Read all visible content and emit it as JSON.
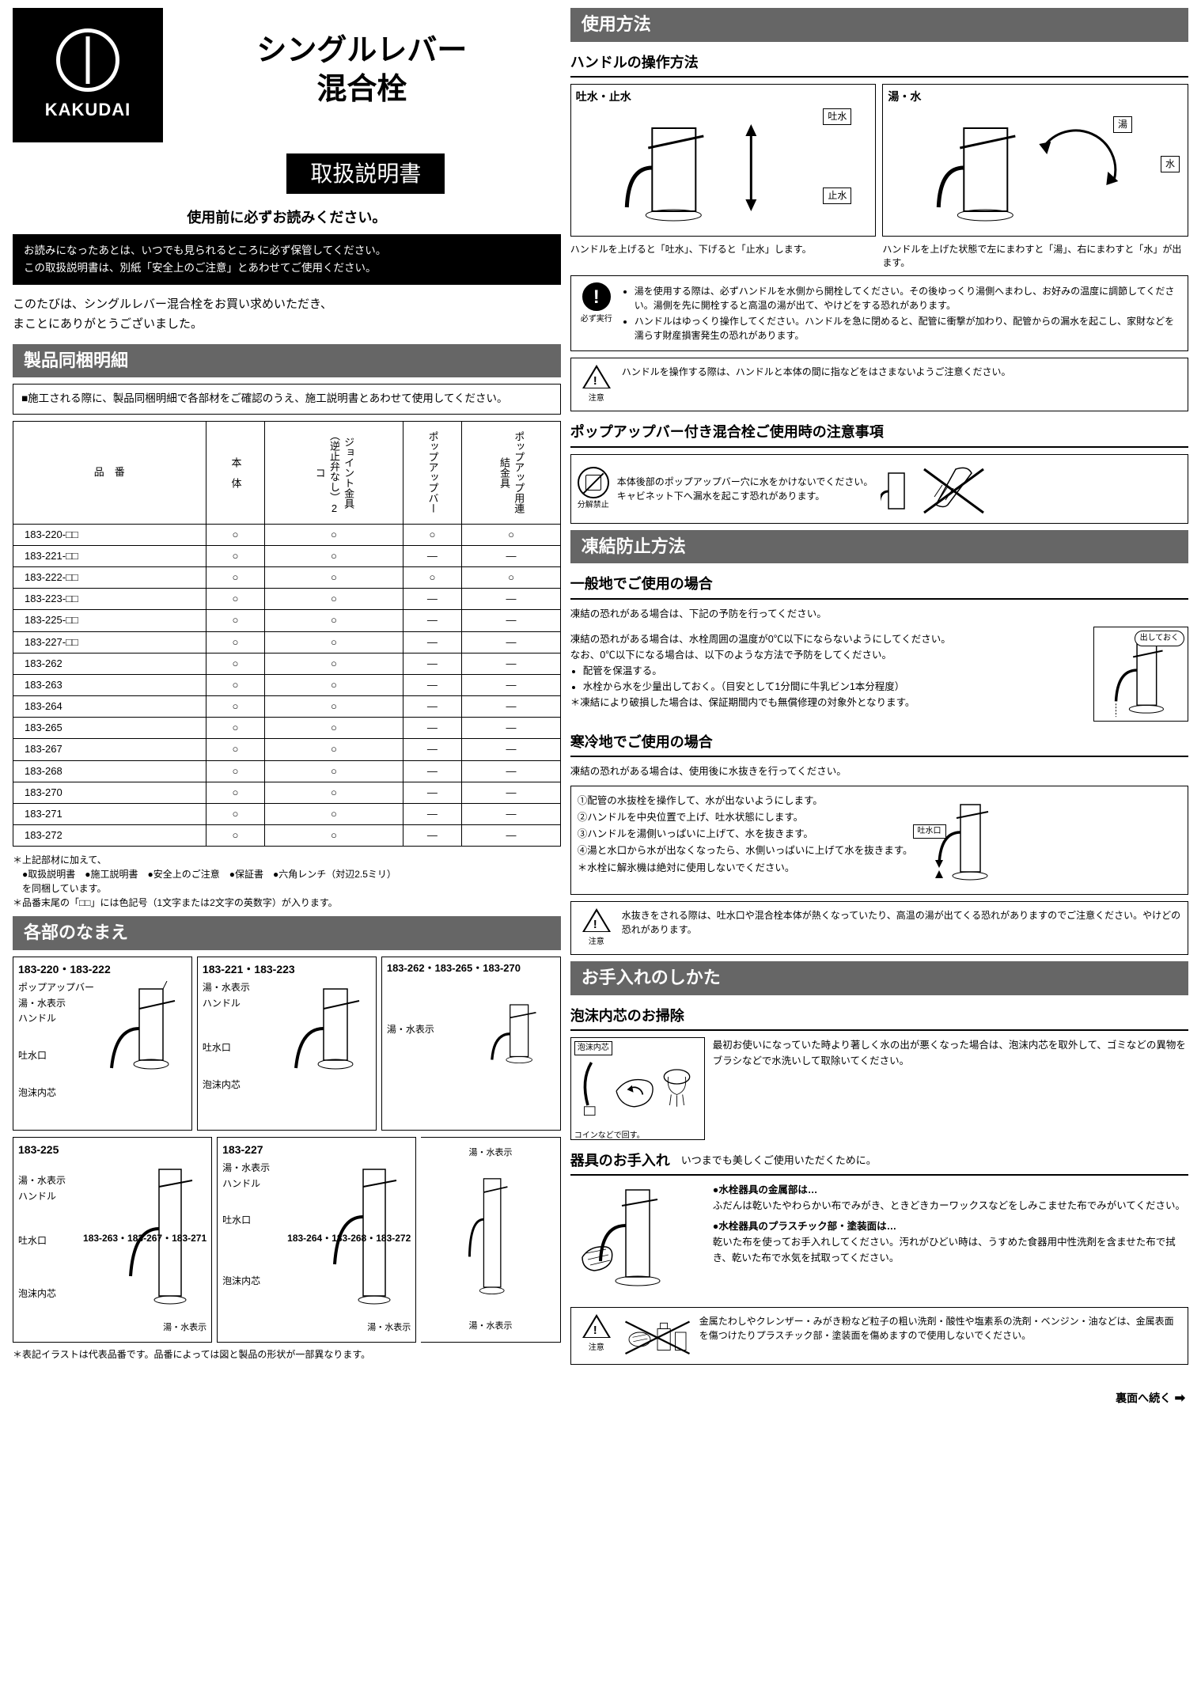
{
  "brand": "KAKUDAI",
  "product_title_1": "シングルレバー",
  "product_title_2": "混合栓",
  "manual_label": "取扱説明書",
  "read_first": "使用前に必ずお読みください。",
  "note_box_1": "お読みになったあとは、いつでも見られるところに必ず保管してください。",
  "note_box_2": "この取扱説明書は、別紙「安全上のご注意」とあわせてご使用ください。",
  "thanks_1": "このたびは、シングルレバー混合栓をお買い求めいただき、",
  "thanks_2": "まことにありがとうございました。",
  "sec_parts": "製品同梱明細",
  "parts_note": "■施工される際に、製品同梱明細で各部材をご確認のうえ、施工説明書とあわせて使用してください。",
  "parts_table": {
    "cols": [
      "品　番",
      "本　体",
      "ジョイント金具（逆止弁なし）2コ",
      "ポップアップバー",
      "ポップアップ用連結金具"
    ],
    "rows": [
      [
        "183-220-□□",
        "○",
        "○",
        "○",
        "○"
      ],
      [
        "183-221-□□",
        "○",
        "○",
        "—",
        "—"
      ],
      [
        "183-222-□□",
        "○",
        "○",
        "○",
        "○"
      ],
      [
        "183-223-□□",
        "○",
        "○",
        "—",
        "—"
      ],
      [
        "183-225-□□",
        "○",
        "○",
        "—",
        "—"
      ],
      [
        "183-227-□□",
        "○",
        "○",
        "—",
        "—"
      ],
      [
        "183-262",
        "○",
        "○",
        "—",
        "—"
      ],
      [
        "183-263",
        "○",
        "○",
        "—",
        "—"
      ],
      [
        "183-264",
        "○",
        "○",
        "—",
        "—"
      ],
      [
        "183-265",
        "○",
        "○",
        "—",
        "—"
      ],
      [
        "183-267",
        "○",
        "○",
        "—",
        "—"
      ],
      [
        "183-268",
        "○",
        "○",
        "—",
        "—"
      ],
      [
        "183-270",
        "○",
        "○",
        "—",
        "—"
      ],
      [
        "183-271",
        "○",
        "○",
        "—",
        "—"
      ],
      [
        "183-272",
        "○",
        "○",
        "—",
        "—"
      ]
    ]
  },
  "parts_foot_1": "＊上記部材に加えて、",
  "parts_foot_2": "　●取扱説明書　●施工説明書　●安全上のご注意　●保証書　●六角レンチ（対辺2.5ミリ）",
  "parts_foot_3": "　を同梱しています。",
  "parts_foot_4": "＊品番末尾の「□□」には色記号（1文字または2文字の英数字）が入ります。",
  "sec_names": "各部のなまえ",
  "names_models": {
    "a": "183-220・183-222",
    "b": "183-221・183-223",
    "c": "183-262・183-265・183-270",
    "d": "183-225",
    "e": "183-227",
    "f1": "183-263・183-267・183-271",
    "f2": "183-264・183-268・183-272"
  },
  "labels": {
    "popup": "ポップアップバー",
    "hot_cold": "湯・水表示",
    "handle": "ハンドル",
    "spout": "吐水口",
    "aerator": "泡沫内芯"
  },
  "names_foot": "＊表記イラストは代表品番です。品番によっては図と製品の形状が一部異なります。",
  "sec_usage": "使用方法",
  "sub_handle": "ハンドルの操作方法",
  "op_a_title": "吐水・止水",
  "op_a_up": "吐水",
  "op_a_down": "止水",
  "op_a_caption": "ハンドルを上げると「吐水」、下げると「止水」します。",
  "op_b_title": "湯・水",
  "op_b_hot": "湯",
  "op_b_cold": "水",
  "op_b_caption": "ハンドルを上げた状態で左にまわすと「湯」、右にまわすと「水」が出ます。",
  "must_label": "必ず実行",
  "must_1": "湯を使用する際は、必ずハンドルを水側から開栓してください。その後ゆっくり湯側へまわし、お好みの温度に調節してください。湯側を先に開栓すると高温の湯が出て、やけどをする恐れがあります。",
  "must_2": "ハンドルはゆっくり操作してください。ハンドルを急に閉めると、配管に衝撃が加わり、配管からの漏水を起こし、家財などを濡らす財産損害発生の恐れがあります。",
  "caution_label": "注意",
  "caution_handle": "ハンドルを操作する際は、ハンドルと本体の間に指などをはさまないようご注意ください。",
  "sub_popup": "ポップアップバー付き混合栓ご使用時の注意事項",
  "nosplit_label": "分解禁止",
  "popup_text_1": "本体後部のポップアップバー穴に水をかけないでください。",
  "popup_text_2": "キャビネット下へ漏水を起こす恐れがあります。",
  "sec_freeze": "凍結防止方法",
  "sub_general": "一般地でご使用の場合",
  "freeze_intro": "凍結の恐れがある場合は、下記の予防を行ってください。",
  "freeze_1": "凍結の恐れがある場合は、水栓周囲の温度が0℃以下にならないようにしてください。",
  "freeze_2": "なお、0℃以下になる場合は、以下のような方法で予防をしてください。",
  "freeze_b1": "配管を保温する。",
  "freeze_b2": "水栓から水を少量出しておく。（目安として1分間に牛乳ビン1本分程度）",
  "freeze_note": "＊凍結により破損した場合は、保証期間内でも無償修理の対象外となります。",
  "freeze_bubble": "出しておく",
  "sub_cold": "寒冷地でご使用の場合",
  "cold_intro": "凍結の恐れがある場合は、使用後に水抜きを行ってください。",
  "cold_1": "①配管の水抜栓を操作して、水が出ないようにします。",
  "cold_2": "②ハンドルを中央位置で上げ、吐水状態にします。",
  "cold_3": "③ハンドルを湯側いっぱいに上げて、水を抜きます。",
  "cold_4": "④湯と水口から水が出なくなったら、水側いっぱいに上げて水を抜きます。",
  "cold_5": "＊水栓に解氷機は絶対に使用しないでください。",
  "cold_spout": "吐水口",
  "cold_caution": "水抜きをされる際は、吐水口や混合栓本体が熱くなっていたり、高温の湯が出てくる恐れがありますのでご注意ください。やけどの恐れがあります。",
  "sec_care": "お手入れのしかた",
  "sub_aerator": "泡沫内芯のお掃除",
  "aerator_text": "最初お使いになっていた時より著しく水の出が悪くなった場合は、泡沫内芯を取外して、ゴミなどの異物をブラシなどで水洗いして取除いてください。",
  "aerator_label_1": "泡沫内芯",
  "aerator_label_2": "コインなどで回す。",
  "sub_care": "器具のお手入れ",
  "care_subtitle": "いつまでも美しくご使用いただくために。",
  "care_h1": "●水栓器具の金属部は…",
  "care_t1": "ふだんは乾いたやわらかい布でみがき、ときどきカーワックスなどをしみこませた布でみがいてください。",
  "care_h2": "●水栓器具のプラスチック部・塗装面は…",
  "care_t2": "乾いた布を使ってお手入れしてください。汚れがひどい時は、うすめた食器用中性洗剤を含ませた布で拭き、乾いた布で水気を拭取ってください。",
  "care_warn": "金属たわしやクレンザー・みがき粉など粒子の粗い洗剤・酸性や塩素系の洗剤・ベンジン・油などは、金属表面を傷つけたりプラスチック部・塗装面を傷めますので使用しないでください。",
  "footer": "裏面へ続く"
}
